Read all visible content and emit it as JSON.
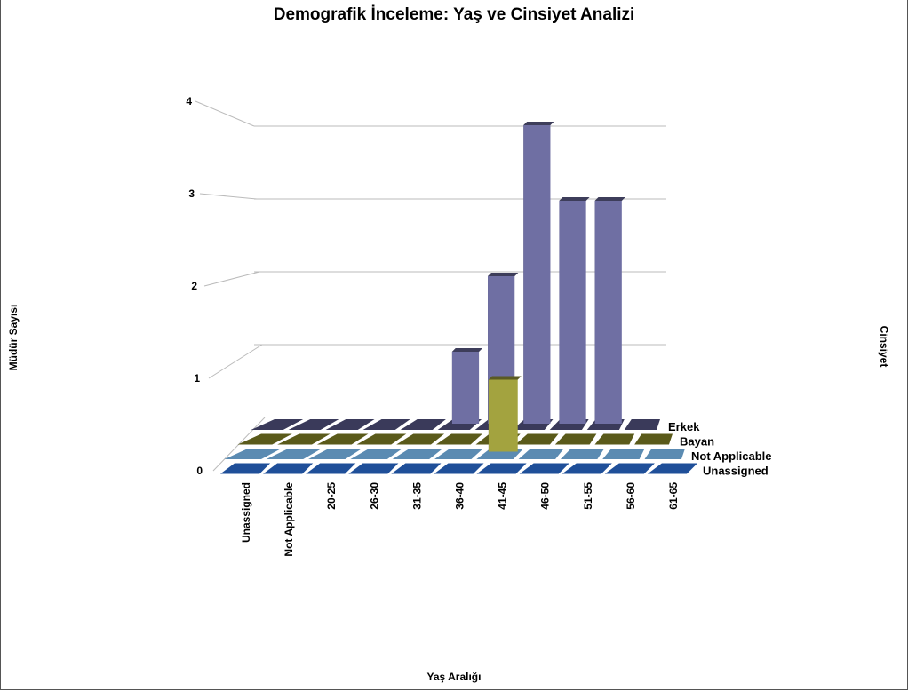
{
  "chart_data": {
    "type": "bar",
    "title": "Demografik İnceleme: Yaş ve Cinsiyet Analizi",
    "xlabel": "Yaş Aralığı",
    "ylabel": "Müdür Sayısı",
    "zlabel": "Cinsiyet",
    "categories": [
      "Unassigned",
      "Not Applicable",
      "20-25",
      "26-30",
      "31-35",
      "36-40",
      "41-45",
      "46-50",
      "51-55",
      "56-60",
      "61-65"
    ],
    "ylim": [
      0,
      4
    ],
    "yticks": [
      "0",
      "1",
      "2",
      "3",
      "4"
    ],
    "series": [
      {
        "name": "Erkek",
        "values": [
          0,
          0,
          0,
          0,
          0,
          1,
          2,
          4,
          3,
          3,
          0
        ],
        "color": "#6f6fa3"
      },
      {
        "name": "Bayan",
        "values": [
          0,
          0,
          0,
          0,
          0,
          0,
          1,
          0,
          0,
          0,
          0
        ],
        "color": "#a3a33f"
      },
      {
        "name": "Not Applicable",
        "values": [
          0,
          0,
          0,
          0,
          0,
          0,
          0,
          0,
          0,
          0,
          0
        ],
        "color": "#5b8bb2"
      },
      {
        "name": "Unassigned",
        "values": [
          0,
          0,
          0,
          0,
          0,
          0,
          0,
          0,
          0,
          0,
          0
        ],
        "color": "#1f4f99"
      }
    ],
    "floor_colors": [
      "#3a3a5a",
      "#5a5a1a",
      "#5b8bb2",
      "#1f4f99"
    ],
    "grid": true,
    "legend": "series labels at right of floor"
  }
}
